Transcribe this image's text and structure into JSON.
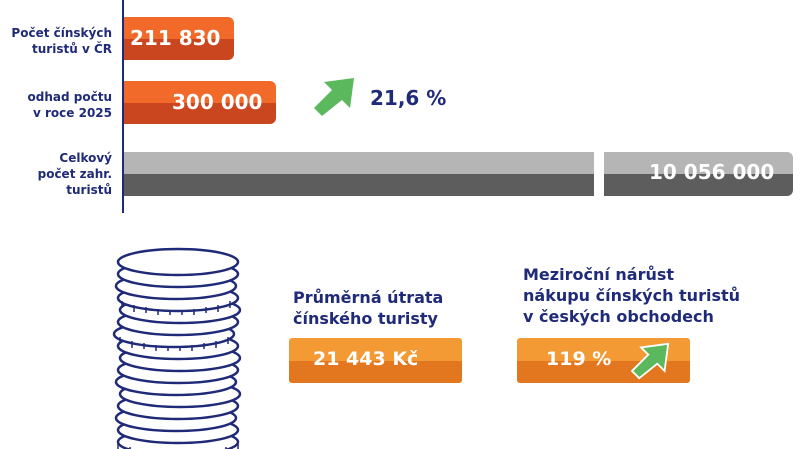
{
  "chart_data": {
    "type": "bar",
    "orientation": "horizontal",
    "categories": [
      "Počet čínských turistů v ČR",
      "odhad počtu v roce 2025",
      "Celkový počet zahr. turistů"
    ],
    "category_lines": [
      [
        "Počet čínských",
        "turistů v ČR"
      ],
      [
        "odhad počtu",
        "v roce 2025"
      ],
      [
        "Celkový",
        "počet zahr.",
        "turistů"
      ]
    ],
    "values": [
      211830,
      300000,
      10056000
    ],
    "value_labels": [
      "211 830",
      "300 000",
      "10 056 000"
    ],
    "axis_break_on_last_bar": true,
    "growth_annotation": "21,6 %",
    "colors": {
      "orange_top": "#f26a2a",
      "orange_bottom": "#c9461e",
      "gray_top": "#b5b5b5",
      "gray_bottom": "#5d5d5d",
      "arrow_green": "#5cb85c"
    }
  },
  "info": {
    "spending_title_lines": [
      "Průměrná útrata",
      "čínského turisty"
    ],
    "spending_value": "21 443 Kč",
    "growth_title_lines": [
      "Meziroční nárůst",
      "nákupu čínských turistů",
      "v českých obchodech"
    ],
    "growth_value": "119 %"
  },
  "icons": [
    "coin-stack-icon",
    "growth-arrow-icon"
  ]
}
